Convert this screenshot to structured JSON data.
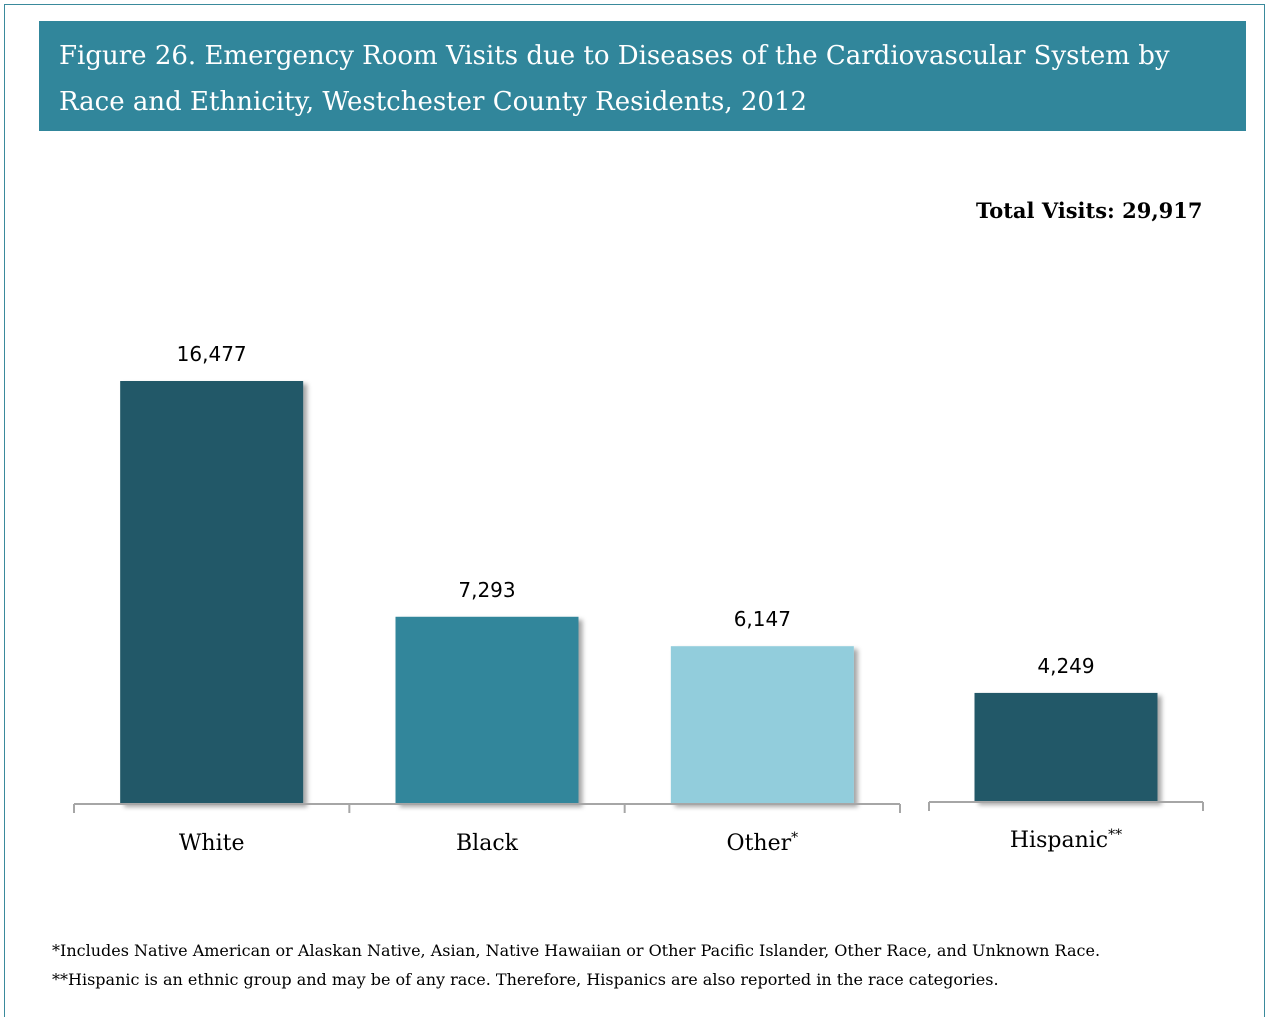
{
  "title": "Figure 26.  Emergency Room Visits due to Diseases of the Cardiovascular System by Race and Ethnicity, Westchester County Residents, 2012",
  "total_label": "Total Visits: 29,917",
  "colors": {
    "header": "#31869b",
    "dark_teal": "#215967",
    "mid_teal": "#31869b",
    "light_blue": "#92cddc",
    "axis": "#a6a6a6"
  },
  "chart_data": {
    "type": "bar",
    "groups": [
      {
        "name": "race",
        "categories": [
          "White",
          "Black",
          "Other*"
        ],
        "values": [
          16477,
          7293,
          6147
        ],
        "value_labels": [
          "16,477",
          "7,293",
          "6,147"
        ],
        "colors": [
          "#215967",
          "#31869b",
          "#92cddc"
        ]
      },
      {
        "name": "ethnicity",
        "categories": [
          "Hispanic**"
        ],
        "values": [
          4249
        ],
        "value_labels": [
          "4,249"
        ],
        "colors": [
          "#215967"
        ]
      }
    ],
    "ylim": [
      0,
      16477
    ],
    "grid": false,
    "legend": "none"
  },
  "footnotes": [
    "*Includes Native American or Alaskan Native, Asian, Native Hawaiian or Other Pacific Islander, Other Race, and Unknown Race.",
    "**Hispanic is an ethnic group and may be of any race.  Therefore, Hispanics are also reported in the race categories."
  ]
}
